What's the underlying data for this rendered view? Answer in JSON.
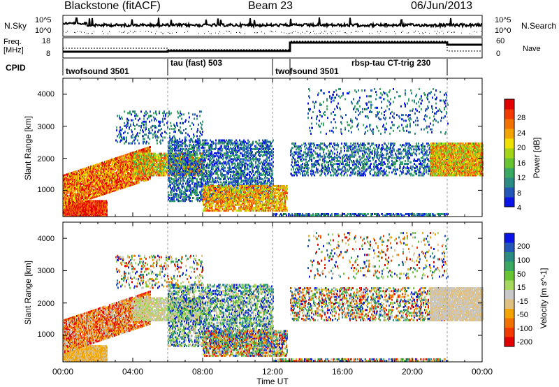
{
  "header": {
    "station": "Blackstone (fitACF)",
    "beam": "Beam 23",
    "date": "06/Jun/2013"
  },
  "summary": {
    "nsky_label": "N.Sky",
    "nsearch_label": "N.Search",
    "noise_ticks": [
      "10^5",
      "10^0"
    ],
    "freq_label_1": "Freq.",
    "freq_label_2": "[MHz]",
    "freq_ticks": [
      "18",
      "8"
    ],
    "nave_label": "Nave",
    "nave_ticks": [
      "60",
      "0"
    ],
    "cpid_label": "CPID"
  },
  "modes": [
    {
      "label": "twofsound 3501",
      "start": 0
    },
    {
      "label": "tau (fast) 503",
      "start": 6
    },
    {
      "label": "twofsound 3501",
      "start": 12
    },
    {
      "label": "rbsp-tau CT-trig 230",
      "start": 17
    }
  ],
  "colors": {
    "power_scale": [
      "#0a14e6",
      "#2456b8",
      "#2b8a82",
      "#3aa860",
      "#68c432",
      "#a4d418",
      "#f0e000",
      "#f2a400",
      "#f27000",
      "#f03a00",
      "#e00000"
    ],
    "velocity_scale": [
      "#0a14e6",
      "#2456b8",
      "#2b8a82",
      "#3aa860",
      "#68c432",
      "#a6d860",
      "#c8c8c8",
      "#e0c080",
      "#f2a400",
      "#f27000",
      "#f03a00",
      "#e00000"
    ]
  },
  "chart_data": [
    {
      "type": "line",
      "title": "Noise",
      "series": [
        {
          "name": "N.Sky",
          "x": [
            0,
            1,
            2,
            4,
            6,
            8,
            10,
            12,
            14,
            16,
            18,
            20,
            22,
            24
          ],
          "y": [
            4,
            8,
            3,
            2,
            2,
            3,
            2,
            2,
            3,
            2,
            3,
            2,
            4,
            3
          ]
        },
        {
          "name": "N.Search",
          "x": [
            0,
            2,
            4,
            6,
            8,
            10,
            12,
            14,
            16,
            18,
            20,
            22,
            24
          ],
          "y": [
            1,
            1,
            1,
            1,
            1,
            1,
            1,
            1,
            1,
            1,
            1,
            1,
            1
          ]
        }
      ]
    },
    {
      "type": "line",
      "title": "Freq / Nave",
      "series": [
        {
          "name": "Freq. [MHz]",
          "x": [
            0,
            6,
            6,
            13,
            13,
            22,
            22,
            24
          ],
          "y": [
            10,
            10,
            11,
            11,
            15,
            15,
            15,
            15
          ]
        },
        {
          "name": "Nave",
          "x": [
            0,
            6,
            6,
            13,
            13,
            22,
            22,
            24
          ],
          "y": [
            20,
            20,
            25,
            25,
            55,
            55,
            22,
            22
          ]
        }
      ]
    },
    {
      "type": "heatmap",
      "title": "Power",
      "xlabel": "",
      "ylabel": "Slant Range [km]",
      "x_ticks": [
        "00:00",
        "04:00",
        "08:00",
        "12:00",
        "16:00",
        "20:00",
        "00:00"
      ],
      "y_ticks": [
        1000,
        2000,
        3000,
        4000
      ],
      "xlim": [
        0,
        24
      ],
      "ylim": [
        180,
        4500
      ],
      "colorbar_label": "Power [dB]",
      "colorbar_ticks": [
        4,
        8,
        12,
        16,
        20,
        24,
        28
      ],
      "colorbar_range": [
        0,
        32
      ]
    },
    {
      "type": "heatmap",
      "title": "Velocity",
      "xlabel": "Time UT",
      "ylabel": "Slant Range [km]",
      "x_ticks": [
        "00:00",
        "04:00",
        "08:00",
        "12:00",
        "16:00",
        "20:00",
        "00:00"
      ],
      "y_ticks": [
        1000,
        2000,
        3000,
        4000
      ],
      "xlim": [
        0,
        24
      ],
      "ylim": [
        180,
        4500
      ],
      "colorbar_label": "Velocity [m s^-1]",
      "colorbar_ticks": [
        200,
        100,
        50,
        15,
        -15,
        -50,
        -100,
        -200
      ]
    }
  ]
}
